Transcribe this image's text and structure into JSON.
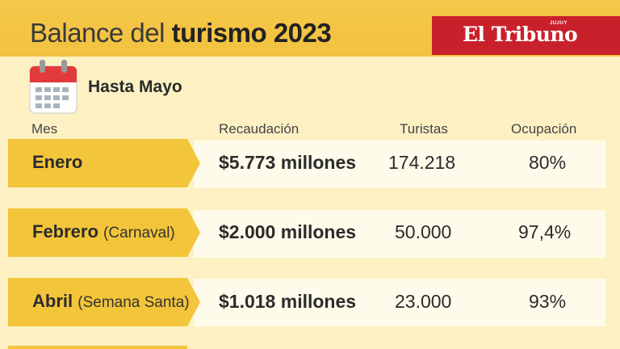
{
  "header": {
    "title_prefix": "Balance del ",
    "title_bold": "turismo 2023",
    "brand": "El Tribuno",
    "brand_sub": "JUJUY"
  },
  "subtitle": "Hasta Mayo",
  "columns": {
    "mes": "Mes",
    "recaudacion": "Recaudación",
    "turistas": "Turistas",
    "ocupacion": "Ocupación"
  },
  "rows": [
    {
      "month": "Enero",
      "note": "",
      "recaudacion": "$5.773 millones",
      "turistas": "174.218",
      "ocupacion": "80%"
    },
    {
      "month": "Febrero",
      "note": "(Carnaval)",
      "recaudacion": "$2.000 millones",
      "turistas": "50.000",
      "ocupacion": "97,4%"
    },
    {
      "month": "Abril",
      "note": "(Semana Santa)",
      "recaudacion": "$1.018 millones",
      "turistas": "23.000",
      "ocupacion": "93%"
    }
  ],
  "colors": {
    "accent": "#f3c53a",
    "brand": "#c9212b",
    "background": "#fdf1c4"
  },
  "icons": {
    "calendar": "calendar-icon"
  }
}
